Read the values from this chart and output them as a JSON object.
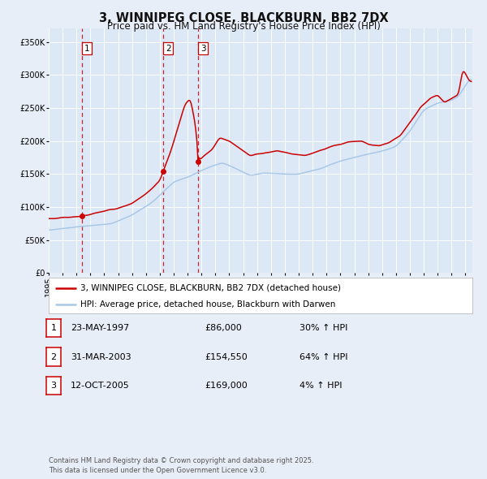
{
  "title": "3, WINNIPEG CLOSE, BLACKBURN, BB2 7DX",
  "subtitle": "Price paid vs. HM Land Registry's House Price Index (HPI)",
  "legend_line1": "3, WINNIPEG CLOSE, BLACKBURN, BB2 7DX (detached house)",
  "legend_line2": "HPI: Average price, detached house, Blackburn with Darwen",
  "transactions": [
    {
      "label": "1",
      "date": "23-MAY-1997",
      "price": 86000,
      "hpi_pct": "30% ↑ HPI",
      "date_num": 1997.39
    },
    {
      "label": "2",
      "date": "31-MAR-2003",
      "price": 154550,
      "hpi_pct": "64% ↑ HPI",
      "date_num": 2003.25
    },
    {
      "label": "3",
      "date": "12-OCT-2005",
      "price": 169000,
      "hpi_pct": "4% ↑ HPI",
      "date_num": 2005.78
    }
  ],
  "footer_line1": "Contains HM Land Registry data © Crown copyright and database right 2025.",
  "footer_line2": "This data is licensed under the Open Government Licence v3.0.",
  "hpi_color": "#a8c8e8",
  "price_color": "#cc0000",
  "dot_color": "#cc0000",
  "vline_color": "#cc0000",
  "plot_bg_color": "#dce8f5",
  "fig_bg_color": "#e8eef8",
  "grid_color": "#ffffff",
  "ylim": [
    0,
    370000
  ],
  "xlim_start": 1995.0,
  "xlim_end": 2025.5
}
